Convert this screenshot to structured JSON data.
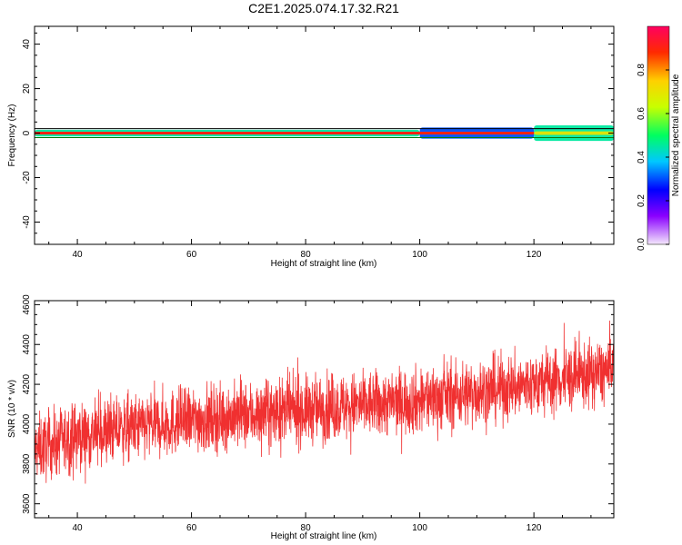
{
  "title": "C2E1.2025.074.17.32.R21",
  "chart_data": [
    {
      "type": "heatmap",
      "xlabel": "Height of straight line (km)",
      "ylabel": "Frequency (Hz)",
      "xlim": [
        32.5,
        134
      ],
      "ylim": [
        -50,
        48
      ],
      "xticks": [
        40,
        60,
        80,
        100,
        120
      ],
      "yticks": [
        -40,
        -20,
        0,
        20,
        40
      ],
      "colorbar": {
        "label": "Normalized spectral amplitude",
        "range": [
          0,
          1
        ],
        "ticks": [
          "0.0",
          "0.2",
          "0.4",
          "0.6",
          "0.8"
        ],
        "colormap": [
          "#f4e8fb",
          "#8a00ff",
          "#0000ff",
          "#00c8ff",
          "#00ff60",
          "#c8ff00",
          "#ffd000",
          "#ff2a00",
          "#ff0060"
        ]
      },
      "bands": [
        {
          "x0": 32.5,
          "x1": 120,
          "halfwidth_hz": 0.5,
          "amplitude": 0.98
        },
        {
          "x0": 32.5,
          "x1": 100,
          "halfwidth_hz": 1.5,
          "amplitude": 0.45
        },
        {
          "x0": 100,
          "x1": 120,
          "halfwidth_hz": 2.5,
          "amplitude": 0.3
        },
        {
          "x0": 120,
          "x1": 134,
          "halfwidth_hz": 3.5,
          "amplitude": 0.45
        },
        {
          "x0": 120,
          "x1": 134,
          "halfwidth_hz": 0.8,
          "amplitude": 0.7
        }
      ],
      "reference_lines_hz": [
        2,
        -2
      ]
    },
    {
      "type": "line",
      "xlabel": "Height of straight line (km)",
      "ylabel": "SNR (10 * v/v)",
      "xlim": [
        32.5,
        134
      ],
      "ylim": [
        3530,
        4620
      ],
      "xticks": [
        40,
        60,
        80,
        100,
        120
      ],
      "yticks": [
        3600,
        3800,
        4000,
        4200,
        4400,
        4600
      ],
      "series": [
        {
          "color": "#f03030",
          "trend": [
            [
              32.5,
              3870
            ],
            [
              40,
              3940
            ],
            [
              60,
              4020
            ],
            [
              80,
              4070
            ],
            [
              100,
              4120
            ],
            [
              120,
              4200
            ],
            [
              134,
              4270
            ]
          ],
          "spread": 110
        }
      ]
    }
  ]
}
